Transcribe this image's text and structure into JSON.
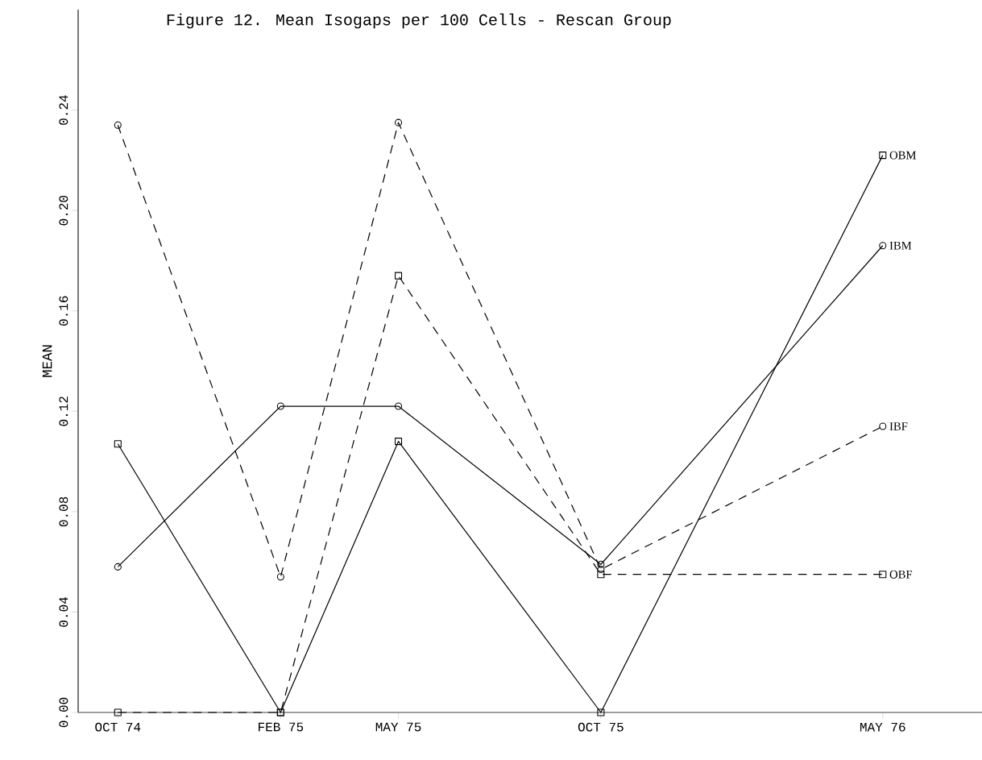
{
  "chart_data": {
    "type": "line",
    "title": "Figure 12.  Mean Isogaps per 100 Cells - Rescan Group",
    "ylabel": "MEAN",
    "x": [
      "1974-10",
      "1975-02",
      "1975-05",
      "1975-10",
      "1976-05"
    ],
    "xlim": [
      "1974-09",
      "1976-07-15"
    ],
    "xticks": [
      {
        "value": "1974-10",
        "label": "OCT 74"
      },
      {
        "value": "1975-02",
        "label": "FEB 75"
      },
      {
        "value": "1975-05",
        "label": "MAY 75"
      },
      {
        "value": "1975-10",
        "label": "OCT 75"
      },
      {
        "value": "1976-05",
        "label": "MAY 76"
      }
    ],
    "ylim": [
      0,
      0.28
    ],
    "yticks": [
      {
        "value": 0,
        "label": "0.00"
      },
      {
        "value": 0.04,
        "label": "0.04"
      },
      {
        "value": 0.08,
        "label": "0.08"
      },
      {
        "value": 0.12,
        "label": "0.12"
      },
      {
        "value": 0.16,
        "label": "0.16"
      },
      {
        "value": 0.2,
        "label": "0.20"
      },
      {
        "value": 0.24,
        "label": "0.24"
      }
    ],
    "series": [
      {
        "name": "OBM",
        "color": "#000000",
        "marker": "square",
        "line_style": "solid",
        "values": [
          0.107,
          0,
          0.108,
          0,
          0.222
        ]
      },
      {
        "name": "IBM",
        "color": "#000000",
        "marker": "circle",
        "line_style": "solid",
        "values": [
          0.058,
          0.122,
          0.122,
          0.059,
          0.186
        ]
      },
      {
        "name": "IBF",
        "color": "#000000",
        "marker": "circle",
        "line_style": "dashed",
        "values": [
          0.234,
          0.054,
          0.235,
          0.057,
          0.114
        ]
      },
      {
        "name": "OBF",
        "color": "#000000",
        "marker": "square",
        "line_style": "dashed",
        "values": [
          0,
          0,
          0.174,
          0.055,
          0.055
        ]
      }
    ]
  }
}
